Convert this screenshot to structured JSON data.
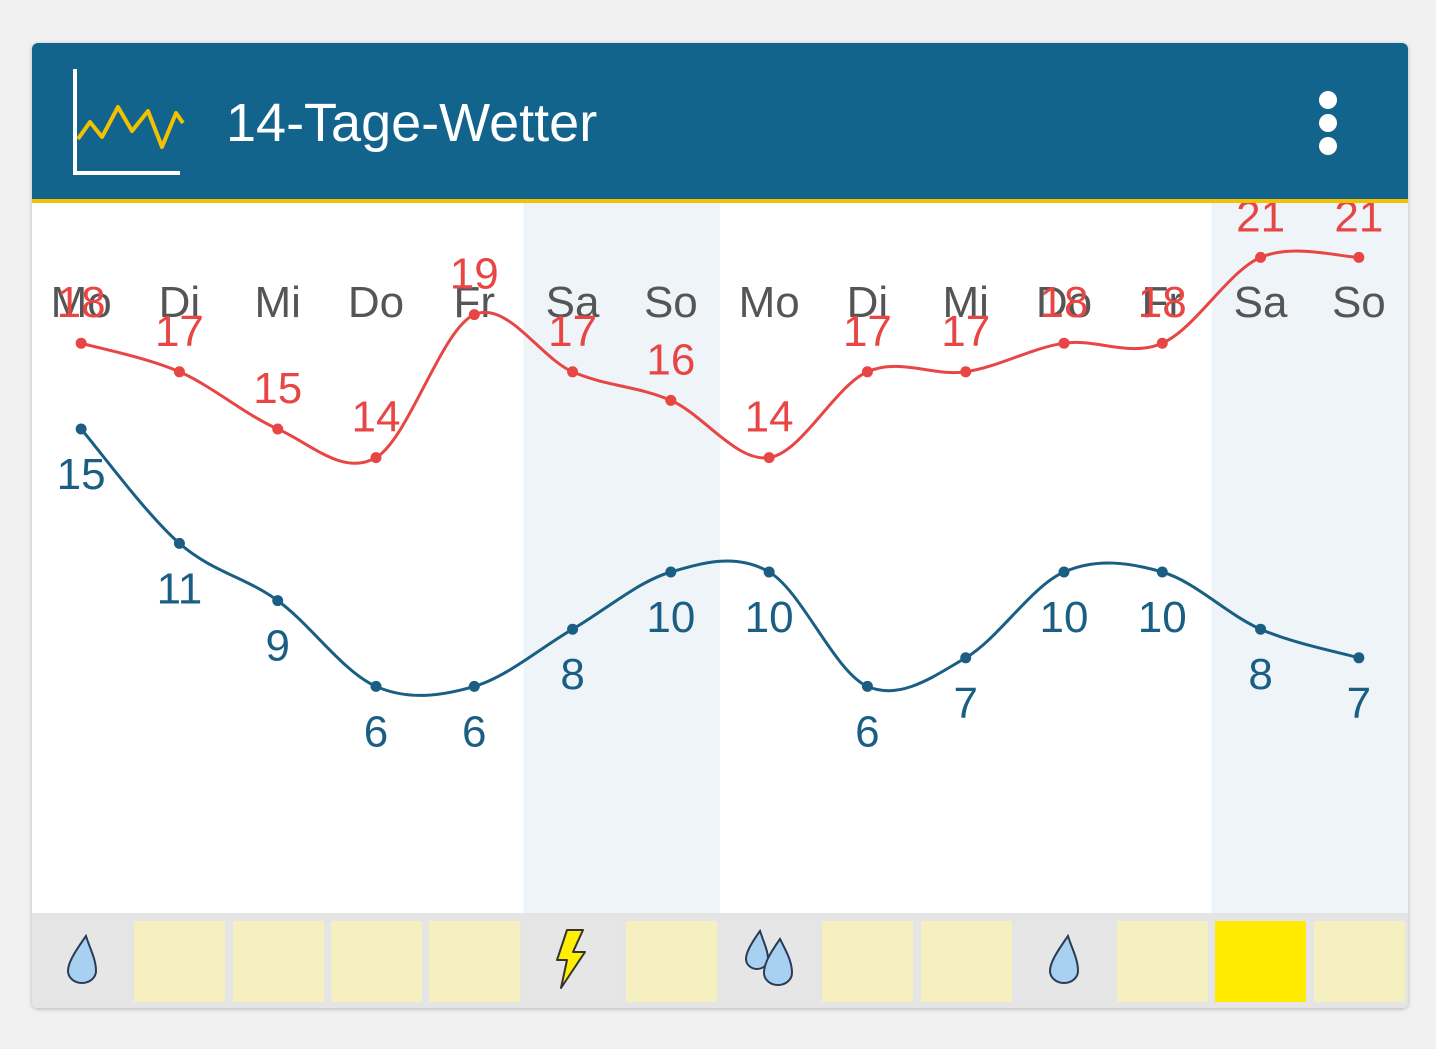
{
  "app": {
    "title": "14-Tage-Wetter"
  },
  "colors": {
    "header": "#12648c",
    "accent_line": "#f2c200",
    "max_series": "#e84545",
    "min_series": "#1a5f83",
    "weekend_bg": "#eff4f8"
  },
  "chart_data": {
    "type": "line",
    "categories": [
      "Mo",
      "Di",
      "Mi",
      "Do",
      "Fr",
      "Sa",
      "So",
      "Mo",
      "Di",
      "Mi",
      "Do",
      "Fr",
      "Sa",
      "So"
    ],
    "series": [
      {
        "values": [
          18,
          17,
          15,
          14,
          19,
          17,
          16,
          14,
          17,
          17,
          18,
          18,
          21,
          21
        ]
      },
      {
        "values": [
          15,
          11,
          9,
          6,
          6,
          8,
          10,
          10,
          6,
          7,
          10,
          10,
          8,
          7
        ]
      }
    ],
    "weekend_highlight": [
      5,
      6,
      12,
      13
    ],
    "grid": false,
    "legend": "none",
    "curve": "smooth"
  },
  "weather_icons": [
    "rain-drop-icon",
    "none",
    "none",
    "none",
    "none",
    "thunder-icon",
    "none",
    "heavy-rain-icon",
    "none",
    "none",
    "rain-drop-icon",
    "none",
    "sunny",
    "none"
  ]
}
